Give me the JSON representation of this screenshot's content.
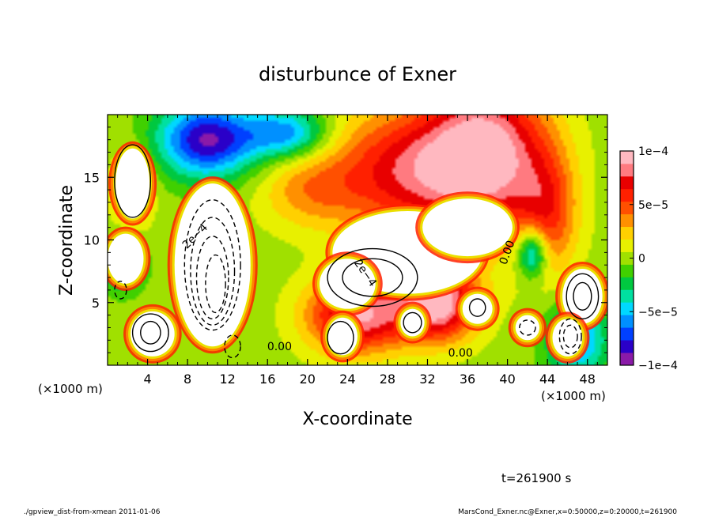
{
  "chart_data": {
    "type": "heatmap",
    "title": "disturbunce of Exner",
    "xlabel": "X-coordinate",
    "ylabel": "Z-coordinate",
    "x_unit_left": "(×1000 m)",
    "x_unit_right": "(×1000 m)",
    "xlim": [
      0,
      50
    ],
    "ylim": [
      0,
      20
    ],
    "x_ticks": [
      4,
      8,
      12,
      16,
      20,
      24,
      28,
      32,
      36,
      40,
      44,
      48
    ],
    "x_tick_labels": [
      "4",
      "8",
      "12",
      "16",
      "20",
      "24",
      "28",
      "32",
      "36",
      "40",
      "44",
      "48"
    ],
    "y_ticks": [
      5,
      10,
      15
    ],
    "y_tick_labels": [
      "5",
      "10",
      "15"
    ],
    "colorbar": {
      "range": [
        -0.0001,
        0.0001
      ],
      "ticks": [
        -0.0001,
        -5e-05,
        0,
        5e-05,
        0.0001
      ],
      "tick_labels": [
        "−1e−4",
        "−5e−5",
        "0",
        "5e−5",
        "1e−4"
      ],
      "colors": [
        "#8a1aa8",
        "#2a00c8",
        "#0040ff",
        "#0090ff",
        "#00d8ff",
        "#00e0a0",
        "#00c840",
        "#40d000",
        "#a0e000",
        "#e8f000",
        "#ffd000",
        "#ff9000",
        "#ff5000",
        "#ff2000",
        "#e80000",
        "#ff7a80",
        "#ffb8c0"
      ],
      "saturation_color": "#ffffff"
    },
    "contour_labels": [
      {
        "text": "2e−4",
        "x": 9.0,
        "y": 10.1,
        "angle": -45
      },
      {
        "text": "2e−4",
        "x": 25.5,
        "y": 7.2,
        "angle": 55
      },
      {
        "text": "0.00",
        "x": 40.3,
        "y": 8.9,
        "angle": -70
      },
      {
        "text": "0.00",
        "x": 17.2,
        "y": 1.2,
        "angle": 0
      },
      {
        "text": "0.00",
        "x": 35.3,
        "y": 0.7,
        "angle": 0
      }
    ],
    "field_features": [
      {
        "x": 38,
        "y": 17,
        "v": 9e-05,
        "sx": 6,
        "sy": 6
      },
      {
        "x": 30,
        "y": 15.5,
        "v": 7e-05,
        "sx": 8,
        "sy": 5
      },
      {
        "x": 44,
        "y": 12,
        "v": 5e-05,
        "sx": 3,
        "sy": 5
      },
      {
        "x": 20,
        "y": 14,
        "v": 3e-05,
        "sx": 5,
        "sy": 3
      },
      {
        "x": 25,
        "y": 4,
        "v": 9e-05,
        "sx": 5,
        "sy": 3
      },
      {
        "x": 33,
        "y": 5,
        "v": 0.0001,
        "sx": 4,
        "sy": 3
      },
      {
        "x": 10,
        "y": 18,
        "v": -9e-05,
        "sx": 5,
        "sy": 3
      },
      {
        "x": 18,
        "y": 18.5,
        "v": -6e-05,
        "sx": 4,
        "sy": 2
      },
      {
        "x": 2.5,
        "y": 14,
        "v": 4e-05,
        "sx": 2,
        "sy": 3
      },
      {
        "x": 42.5,
        "y": 9,
        "v": -7e-05,
        "sx": 1.5,
        "sy": 2
      },
      {
        "x": 1.5,
        "y": 8,
        "v": -5e-05,
        "sx": 2,
        "sy": 2
      },
      {
        "x": 47,
        "y": 2,
        "v": -6e-05,
        "sx": 3,
        "sy": 3
      }
    ],
    "saturated_regions": [
      {
        "x": 10.5,
        "y": 8,
        "rx": 3.8,
        "ry": 6.5
      },
      {
        "x": 30,
        "y": 9,
        "rx": 7.5,
        "ry": 3.3
      },
      {
        "x": 36,
        "y": 11,
        "rx": 4.5,
        "ry": 2.3
      },
      {
        "x": 24,
        "y": 6.5,
        "rx": 2.8,
        "ry": 2
      },
      {
        "x": 4.5,
        "y": 2.5,
        "rx": 2.2,
        "ry": 1.8
      },
      {
        "x": 1.8,
        "y": 8.5,
        "rx": 1.8,
        "ry": 2
      },
      {
        "x": 2.5,
        "y": 14.5,
        "rx": 1.7,
        "ry": 2.8
      },
      {
        "x": 47.5,
        "y": 5.5,
        "rx": 2,
        "ry": 2.2
      },
      {
        "x": 46,
        "y": 2.2,
        "rx": 1.5,
        "ry": 1.5
      },
      {
        "x": 23.5,
        "y": 2.3,
        "rx": 1.5,
        "ry": 1.5
      },
      {
        "x": 30.5,
        "y": 3.4,
        "rx": 1.2,
        "ry": 1.1
      },
      {
        "x": 42,
        "y": 3,
        "rx": 1.2,
        "ry": 1
      },
      {
        "x": 37,
        "y": 4.5,
        "rx": 1.5,
        "ry": 1.2
      }
    ],
    "contours": [
      {
        "x": 10.5,
        "y": 8,
        "rx": 2.8,
        "ry": 5.2,
        "dashed": true
      },
      {
        "x": 10.5,
        "y": 7.5,
        "rx": 2.2,
        "ry": 4.3,
        "dashed": true
      },
      {
        "x": 10.5,
        "y": 7,
        "rx": 1.6,
        "ry": 3.3,
        "dashed": true
      },
      {
        "x": 10.8,
        "y": 6.5,
        "rx": 1.0,
        "ry": 2.3,
        "dashed": true
      },
      {
        "x": 1.3,
        "y": 6,
        "rx": 0.6,
        "ry": 0.7,
        "dashed": true
      },
      {
        "x": 46.3,
        "y": 2.3,
        "rx": 1.1,
        "ry": 1.4,
        "dashed": true
      },
      {
        "x": 46.3,
        "y": 2.3,
        "rx": 0.7,
        "ry": 0.9,
        "dashed": true
      },
      {
        "x": 42,
        "y": 3,
        "rx": 0.8,
        "ry": 0.6,
        "dashed": true
      },
      {
        "x": 12.5,
        "y": 1.5,
        "rx": 0.8,
        "ry": 0.9,
        "dashed": true
      },
      {
        "x": 2.5,
        "y": 14.7,
        "rx": 1.8,
        "ry": 2.9,
        "dashed": false
      },
      {
        "x": 26.5,
        "y": 7,
        "rx": 4.5,
        "ry": 2.3,
        "dashed": false
      },
      {
        "x": 26.5,
        "y": 7,
        "rx": 3,
        "ry": 1.5,
        "dashed": false
      },
      {
        "x": 47.5,
        "y": 5.5,
        "rx": 1.6,
        "ry": 1.8,
        "dashed": false
      },
      {
        "x": 47.5,
        "y": 5.5,
        "rx": 0.9,
        "ry": 1.1,
        "dashed": false
      },
      {
        "x": 4.3,
        "y": 2.6,
        "rx": 1.8,
        "ry": 1.5,
        "dashed": false
      },
      {
        "x": 4.3,
        "y": 2.6,
        "rx": 1.0,
        "ry": 0.9,
        "dashed": false
      },
      {
        "x": 23.3,
        "y": 2.2,
        "rx": 1.3,
        "ry": 1.3,
        "dashed": false
      },
      {
        "x": 30.5,
        "y": 3.4,
        "rx": 0.9,
        "ry": 0.8,
        "dashed": false
      },
      {
        "x": 37,
        "y": 4.6,
        "rx": 0.8,
        "ry": 0.7,
        "dashed": false
      }
    ]
  },
  "annotations": {
    "time": "t=261900 s",
    "footer_left": "./gpview_dist-from-xmean   2011-01-06",
    "footer_right": "MarsCond_Exner.nc@Exner,x=0:50000,z=0:20000,t=261900"
  }
}
